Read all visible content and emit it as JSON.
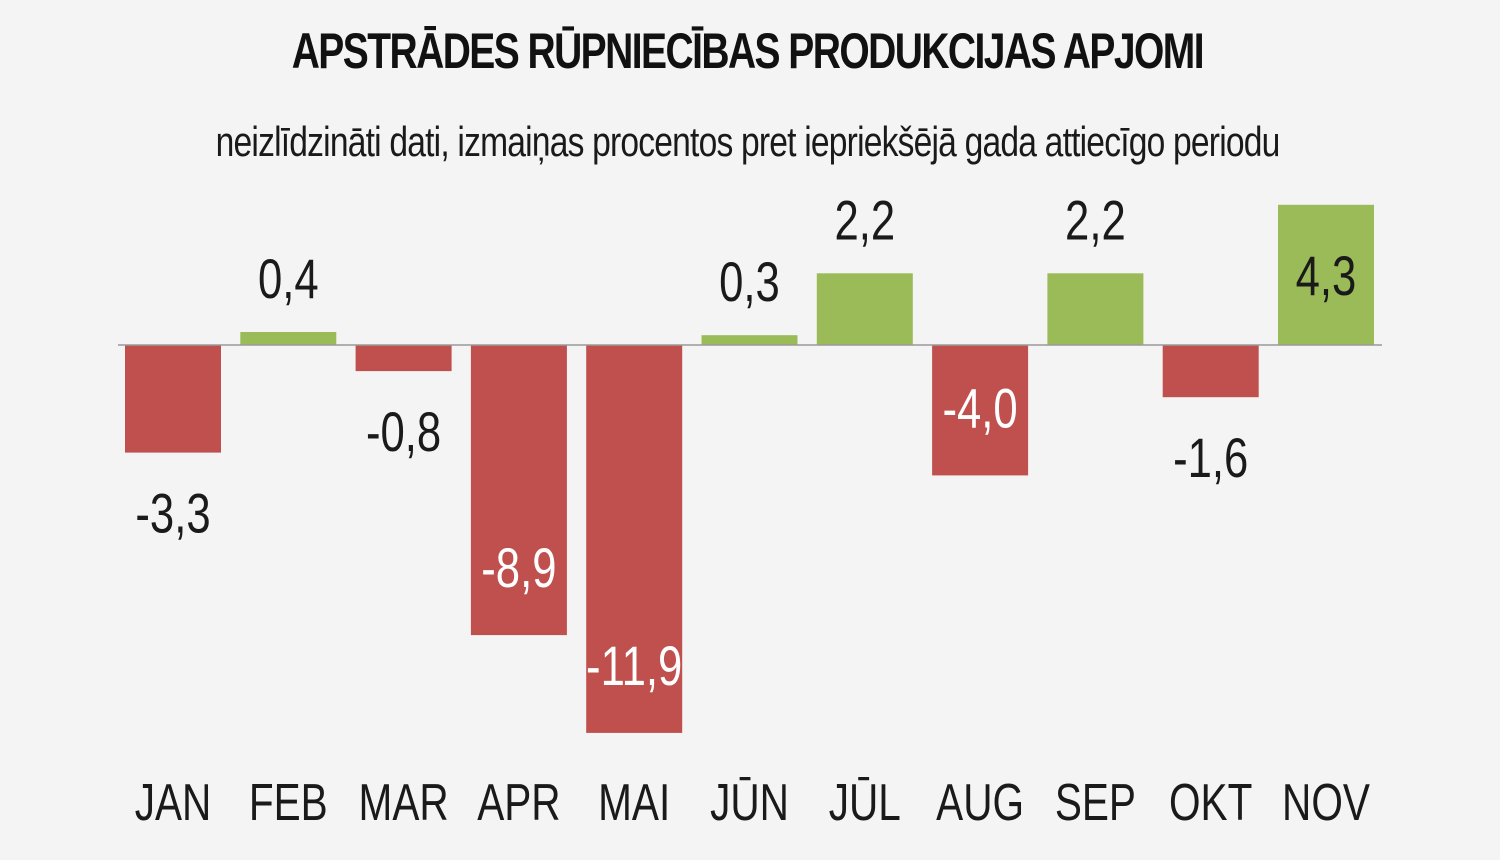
{
  "chart_data": {
    "type": "bar",
    "title": "APSTRĀDES RŪPNIECĪBAS PRODUKCIJAS APJOMI",
    "subtitle": "neizlīdzināti dati, izmaiņas procentos pret iepriekšējā gada attiecīgo periodu",
    "categories": [
      "JAN",
      "FEB",
      "MAR",
      "APR",
      "MAI",
      "JŪN",
      "JŪL",
      "AUG",
      "SEP",
      "OKT",
      "NOV"
    ],
    "values": [
      -3.3,
      0.4,
      -0.8,
      -8.9,
      -11.9,
      0.3,
      2.2,
      -4.0,
      2.2,
      -1.6,
      4.3
    ],
    "value_labels": [
      "-3,3",
      "0,4",
      "-0,8",
      "-8,9",
      "-11,9",
      "0,3",
      "2,2",
      "-4,0",
      "2,2",
      "-1,6",
      "4,3"
    ],
    "xlabel": "",
    "ylabel": "",
    "ylim": [
      -12,
      4.3
    ],
    "grid": false,
    "legend": "none"
  },
  "colors": {
    "positive": "#9bbb59",
    "negative": "#c0504d",
    "axis": "#9a9a9a",
    "label_on_bar": "#ffffff",
    "label_off_bar": "#1a1a1a"
  }
}
